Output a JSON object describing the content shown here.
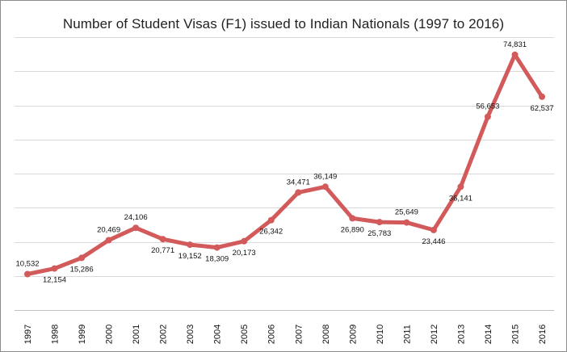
{
  "chart_data": {
    "type": "line",
    "title": "Number of Student Visas (F1) issued to Indian Nationals (1997 to 2016)",
    "xlabel": "",
    "ylabel": "",
    "ylim": [
      0,
      80000
    ],
    "grid": true,
    "y_gridline_interval": 10000,
    "legend": "none",
    "line_color": "#d25a5a",
    "x": [
      "1997",
      "1998",
      "1999",
      "2000",
      "2001",
      "2002",
      "2003",
      "2004",
      "2005",
      "2006",
      "2007",
      "2008",
      "2009",
      "2010",
      "2011",
      "2012",
      "2013",
      "2014",
      "2015",
      "2016"
    ],
    "values": [
      10532,
      12154,
      15286,
      20469,
      24106,
      20771,
      19152,
      18309,
      20173,
      26342,
      34471,
      36149,
      26890,
      25783,
      25649,
      23446,
      36141,
      56653,
      74831,
      62537
    ],
    "data_labels": [
      "10,532",
      "12,154",
      "15,286",
      "20,469",
      "24,106",
      "20,771",
      "19,152",
      "18,309",
      "20,173",
      "26,342",
      "34,471",
      "36,149",
      "26,890",
      "25,783",
      "25,649",
      "23,446",
      "36,141",
      "56,653",
      "74,831",
      "62,537"
    ],
    "label_positions": [
      "above",
      "below",
      "below",
      "above",
      "above",
      "below",
      "below",
      "below",
      "below",
      "below",
      "above",
      "above",
      "below",
      "below",
      "above",
      "below",
      "below",
      "above",
      "above",
      "below"
    ]
  }
}
